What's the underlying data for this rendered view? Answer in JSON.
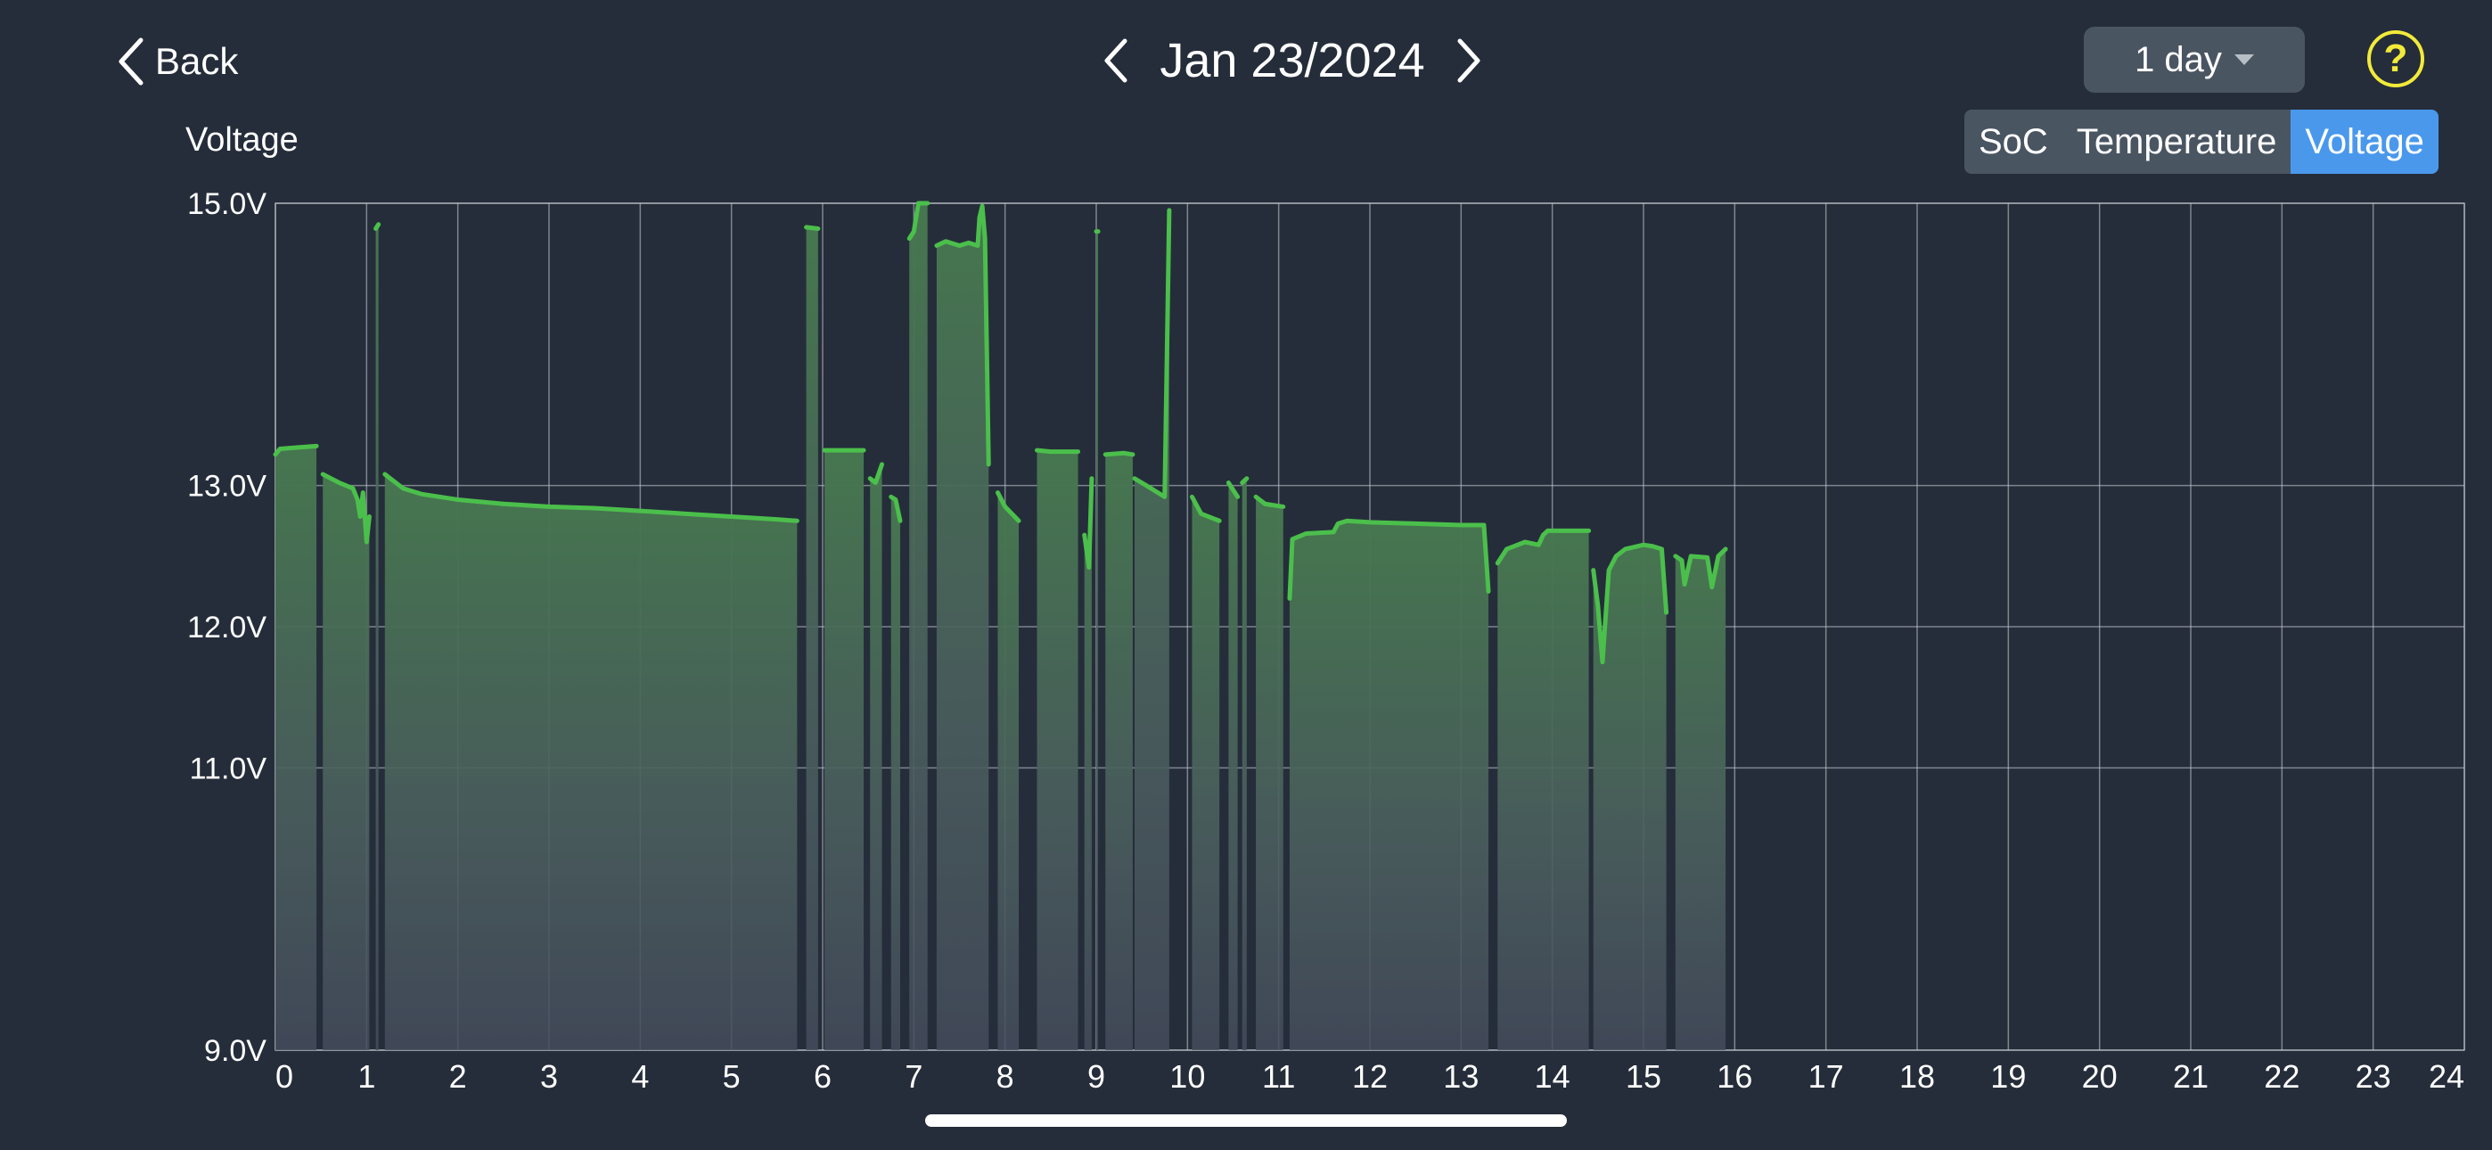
{
  "header": {
    "back_label": "Back",
    "date_label": "Jan 23/2024",
    "range_label": "1 day",
    "help_label": "?"
  },
  "segments": [
    {
      "label": "SoC",
      "active": false
    },
    {
      "label": "Temperature",
      "active": false
    },
    {
      "label": "Voltage",
      "active": true
    }
  ],
  "colors": {
    "background": "#252d3a",
    "line": "#4bbf4b",
    "grid": "#c9ced4",
    "active_segment": "#4a98ec",
    "help": "#f2ea3a"
  },
  "chart_data": {
    "type": "area",
    "ylabel": "Voltage",
    "xlabel": "",
    "xlim": [
      0,
      24
    ],
    "ylim": [
      9,
      15
    ],
    "y_ticks": [
      {
        "value": 15,
        "label": "15.0V"
      },
      {
        "value": 13,
        "label": "13.0V"
      },
      {
        "value": 12,
        "label": "12.0V"
      },
      {
        "value": 11,
        "label": "11.0V"
      },
      {
        "value": 9,
        "label": "9.0V"
      }
    ],
    "x_ticks": [
      "0",
      "1",
      "2",
      "3",
      "4",
      "5",
      "6",
      "7",
      "8",
      "9",
      "10",
      "11",
      "12",
      "13",
      "14",
      "15",
      "16",
      "17",
      "18",
      "19",
      "20",
      "21",
      "22",
      "23",
      "24"
    ],
    "grid": true,
    "segments": [
      [
        [
          0.0,
          13.22
        ],
        [
          0.05,
          13.26
        ],
        [
          0.25,
          13.27
        ],
        [
          0.45,
          13.28
        ]
      ],
      [
        [
          0.52,
          13.08
        ],
        [
          0.7,
          13.02
        ],
        [
          0.85,
          12.98
        ],
        [
          0.9,
          12.9
        ],
        [
          0.93,
          12.78
        ],
        [
          0.96,
          12.95
        ],
        [
          1.0,
          12.6
        ],
        [
          1.03,
          12.78
        ]
      ],
      [
        [
          1.1,
          14.82
        ],
        [
          1.13,
          14.85
        ]
      ],
      [
        [
          1.2,
          13.08
        ],
        [
          1.4,
          12.98
        ],
        [
          1.6,
          12.94
        ],
        [
          2.0,
          12.9
        ],
        [
          2.5,
          12.87
        ],
        [
          3.0,
          12.85
        ],
        [
          3.5,
          12.84
        ],
        [
          4.0,
          12.82
        ],
        [
          4.5,
          12.8
        ],
        [
          5.0,
          12.78
        ],
        [
          5.5,
          12.76
        ],
        [
          5.72,
          12.75
        ]
      ],
      [
        [
          5.82,
          14.83
        ],
        [
          5.95,
          14.82
        ]
      ],
      [
        [
          6.02,
          13.25
        ],
        [
          6.2,
          13.25
        ],
        [
          6.45,
          13.25
        ]
      ],
      [
        [
          6.52,
          13.05
        ],
        [
          6.58,
          13.02
        ],
        [
          6.65,
          13.15
        ]
      ],
      [
        [
          6.75,
          12.92
        ],
        [
          6.8,
          12.9
        ],
        [
          6.85,
          12.75
        ]
      ],
      [
        [
          6.95,
          14.75
        ],
        [
          7.0,
          14.8
        ],
        [
          7.05,
          15.0
        ],
        [
          7.15,
          15.0
        ]
      ],
      [
        [
          7.25,
          14.7
        ],
        [
          7.35,
          14.73
        ],
        [
          7.5,
          14.7
        ],
        [
          7.6,
          14.72
        ],
        [
          7.7,
          14.7
        ],
        [
          7.72,
          14.9
        ],
        [
          7.75,
          14.98
        ],
        [
          7.78,
          14.75
        ],
        [
          7.82,
          13.15
        ]
      ],
      [
        [
          7.92,
          12.95
        ],
        [
          8.0,
          12.85
        ],
        [
          8.15,
          12.75
        ]
      ],
      [
        [
          8.35,
          13.25
        ],
        [
          8.5,
          13.24
        ],
        [
          8.8,
          13.24
        ]
      ],
      [
        [
          8.87,
          12.65
        ],
        [
          8.92,
          12.42
        ],
        [
          8.95,
          13.05
        ]
      ],
      [
        [
          9.0,
          14.8
        ],
        [
          9.02,
          14.8
        ]
      ],
      [
        [
          9.1,
          13.22
        ],
        [
          9.3,
          13.23
        ],
        [
          9.4,
          13.22
        ]
      ],
      [
        [
          9.42,
          13.05
        ],
        [
          9.55,
          13.0
        ],
        [
          9.75,
          12.92
        ],
        [
          9.8,
          14.95
        ]
      ],
      [
        [
          10.05,
          12.92
        ],
        [
          10.15,
          12.8
        ],
        [
          10.35,
          12.75
        ]
      ],
      [
        [
          10.45,
          13.02
        ],
        [
          10.55,
          12.92
        ]
      ],
      [
        [
          10.6,
          13.02
        ],
        [
          10.65,
          13.05
        ]
      ],
      [
        [
          10.75,
          12.92
        ],
        [
          10.85,
          12.87
        ],
        [
          11.05,
          12.85
        ]
      ],
      [
        [
          11.12,
          12.2
        ],
        [
          11.15,
          12.62
        ],
        [
          11.3,
          12.66
        ],
        [
          11.6,
          12.67
        ],
        [
          11.65,
          12.73
        ],
        [
          11.75,
          12.75
        ],
        [
          12.0,
          12.74
        ],
        [
          12.5,
          12.73
        ],
        [
          13.0,
          12.72
        ],
        [
          13.25,
          12.72
        ],
        [
          13.3,
          12.25
        ]
      ],
      [
        [
          13.4,
          12.45
        ],
        [
          13.5,
          12.55
        ],
        [
          13.7,
          12.6
        ],
        [
          13.85,
          12.58
        ],
        [
          13.9,
          12.65
        ],
        [
          13.95,
          12.68
        ],
        [
          14.3,
          12.68
        ],
        [
          14.4,
          12.68
        ]
      ],
      [
        [
          14.45,
          12.4
        ],
        [
          14.5,
          12.15
        ],
        [
          14.55,
          11.75
        ],
        [
          14.62,
          12.4
        ],
        [
          14.7,
          12.5
        ],
        [
          14.8,
          12.55
        ],
        [
          15.0,
          12.58
        ],
        [
          15.1,
          12.57
        ],
        [
          15.2,
          12.55
        ],
        [
          15.25,
          12.1
        ]
      ],
      [
        [
          15.35,
          12.5
        ],
        [
          15.42,
          12.47
        ],
        [
          15.45,
          12.3
        ],
        [
          15.52,
          12.5
        ],
        [
          15.7,
          12.49
        ],
        [
          15.75,
          12.28
        ],
        [
          15.82,
          12.5
        ],
        [
          15.9,
          12.55
        ]
      ]
    ]
  }
}
